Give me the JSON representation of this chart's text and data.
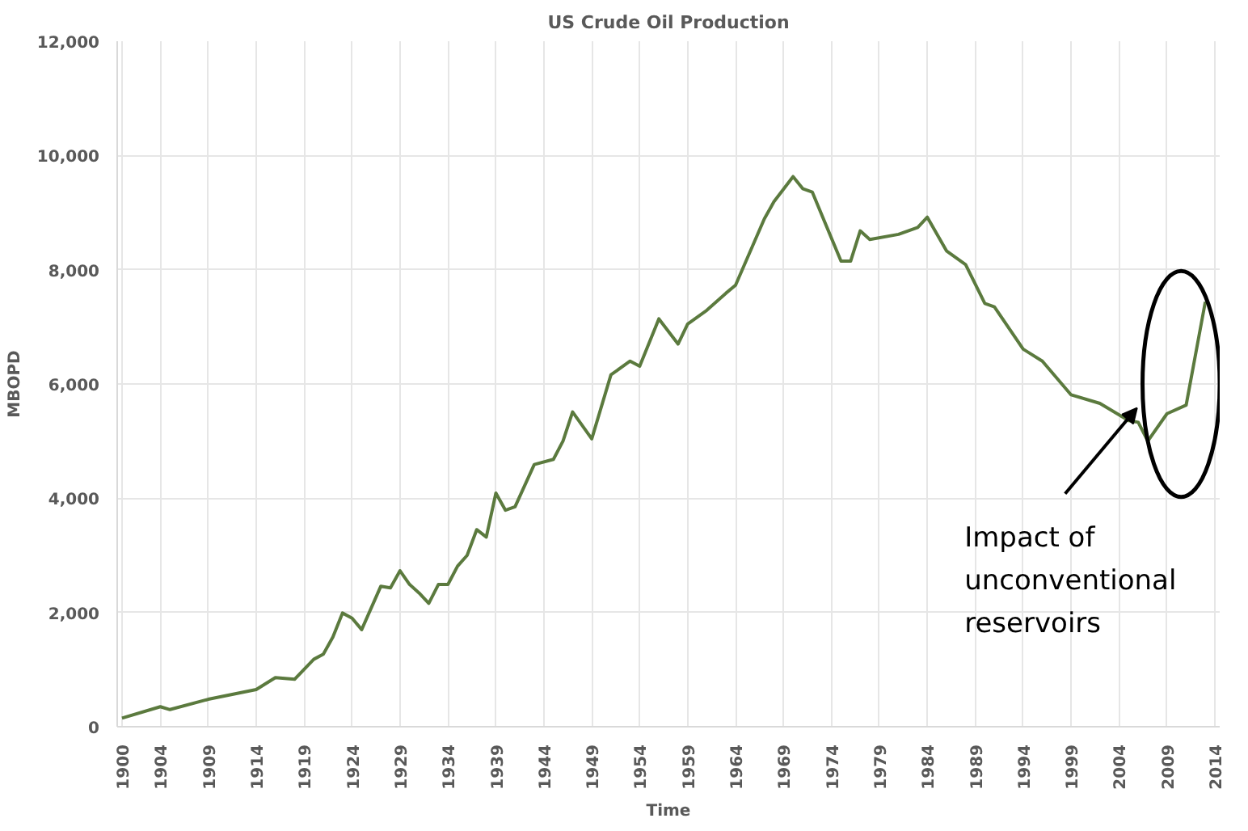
{
  "chart_data": {
    "type": "line",
    "title": "US Crude Oil Production",
    "xlabel": "Time",
    "ylabel": "MBOPD",
    "x": [
      1900,
      1904,
      1905,
      1909,
      1914,
      1916,
      1918,
      1920,
      1921,
      1922,
      1923,
      1924,
      1925,
      1927,
      1928,
      1929,
      1930,
      1931,
      1932,
      1933,
      1934,
      1935,
      1936,
      1937,
      1938,
      1939,
      1940,
      1941,
      1943,
      1945,
      1946,
      1947,
      1949,
      1951,
      1953,
      1954,
      1956,
      1958,
      1959,
      1961,
      1963,
      1964,
      1967,
      1968,
      1970,
      1971,
      1972,
      1975,
      1976,
      1977,
      1978,
      1981,
      1983,
      1984,
      1986,
      1988,
      1990,
      1991,
      1994,
      1996,
      1999,
      2002,
      2005,
      2006,
      2007,
      2009,
      2011,
      2013
    ],
    "series": [
      {
        "color": "#5b7a3e",
        "values": [
          150,
          350,
          300,
          480,
          650,
          860,
          830,
          1180,
          1270,
          1570,
          1990,
          1900,
          1700,
          2460,
          2430,
          2730,
          2490,
          2340,
          2160,
          2490,
          2490,
          2810,
          3000,
          3450,
          3320,
          4090,
          3790,
          3850,
          4590,
          4680,
          5000,
          5510,
          5040,
          6160,
          6400,
          6310,
          7140,
          6700,
          7050,
          7290,
          7590,
          7730,
          8890,
          9190,
          9630,
          9420,
          9360,
          8150,
          8150,
          8680,
          8530,
          8620,
          8740,
          8920,
          8330,
          8090,
          7410,
          7350,
          6610,
          6400,
          5810,
          5660,
          5360,
          5330,
          5000,
          5480,
          5630,
          7440
        ]
      }
    ],
    "xlim": [
      1899.5,
      2014.5
    ],
    "xticks": [
      1900,
      1904,
      1909,
      1914,
      1919,
      1924,
      1929,
      1934,
      1939,
      1944,
      1949,
      1954,
      1959,
      1964,
      1969,
      1974,
      1979,
      1984,
      1989,
      1994,
      1999,
      2004,
      2009,
      2014
    ],
    "ylim": [
      0,
      12000
    ],
    "yticks": [
      0,
      {
        "value": 2000,
        "label": "2,000"
      },
      {
        "value": 4000,
        "label": "4,000"
      },
      {
        "value": 6000,
        "label": "6,000"
      },
      {
        "value": 8000,
        "label": "8,000"
      },
      {
        "value": 10000,
        "label": "10,000"
      },
      {
        "value": 12000,
        "label": "12,000"
      }
    ],
    "grid": true,
    "marker": "none",
    "line_style": "solid",
    "annotations": [
      "Impact of\nunconventional\nreservoirs"
    ]
  }
}
